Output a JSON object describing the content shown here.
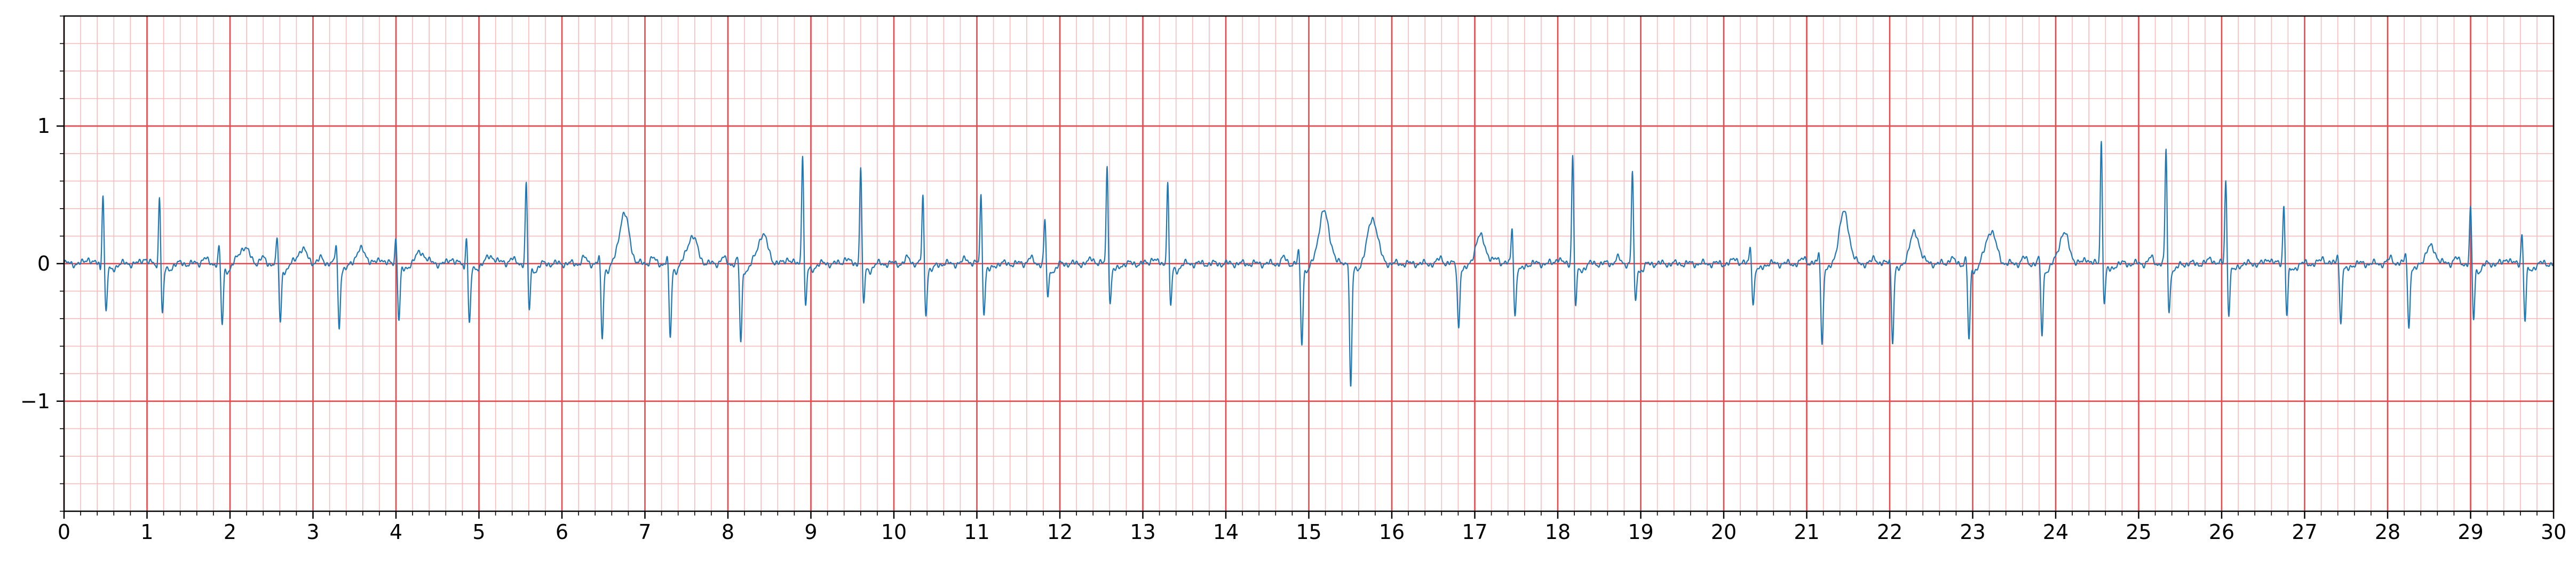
{
  "chart_data": {
    "type": "line",
    "title": "",
    "xlabel": "",
    "ylabel": "",
    "xlim": [
      0,
      30
    ],
    "ylim": [
      -1.8,
      1.8
    ],
    "grid": true,
    "legend": "none",
    "x_ticks": [
      0,
      1,
      2,
      3,
      4,
      5,
      6,
      7,
      8,
      9,
      10,
      11,
      12,
      13,
      14,
      15,
      16,
      17,
      18,
      19,
      20,
      21,
      22,
      23,
      24,
      25,
      26,
      27,
      28,
      29,
      30
    ],
    "x_tick_labels": [
      "0",
      "1",
      "2",
      "3",
      "4",
      "5",
      "6",
      "7",
      "8",
      "9",
      "10",
      "11",
      "12",
      "13",
      "14",
      "15",
      "16",
      "17",
      "18",
      "19",
      "20",
      "21",
      "22",
      "23",
      "24",
      "25",
      "26",
      "27",
      "28",
      "29",
      "30"
    ],
    "y_ticks": [
      -1,
      0,
      1
    ],
    "y_tick_labels": [
      "−1",
      "0",
      "1"
    ],
    "major_grid_x": 1,
    "major_grid_y": 1,
    "minor_grid_step": 0.2,
    "colors": {
      "trace": "#1f77b4",
      "major_grid": "#e8474b",
      "minor_grid": "#f7bcbc",
      "axes": "#000000"
    },
    "series": [
      {
        "beats": [
          {
            "t": 0.47,
            "r": 0.53,
            "q": -0.05,
            "s": -0.35,
            "tw": 0.0
          },
          {
            "t": 1.15,
            "r": 0.52,
            "q": -0.05,
            "s": -0.36,
            "tw": 0.0
          },
          {
            "t": 1.87,
            "r": 0.13,
            "q": 0.0,
            "s": -0.44,
            "tw": 0.12
          },
          {
            "t": 2.57,
            "r": 0.19,
            "q": 0.0,
            "s": -0.42,
            "tw": 0.1
          },
          {
            "t": 3.28,
            "r": 0.16,
            "q": 0.0,
            "s": -0.45,
            "tw": 0.1
          },
          {
            "t": 4.0,
            "r": 0.2,
            "q": 0.0,
            "s": -0.4,
            "tw": 0.08
          },
          {
            "t": 4.85,
            "r": 0.22,
            "q": -0.05,
            "s": -0.43,
            "tw": 0.05
          },
          {
            "t": 5.57,
            "r": 0.6,
            "q": 0.0,
            "s": -0.33,
            "tw": 0.0
          },
          {
            "t": 6.45,
            "r": 0.05,
            "q": 0.0,
            "s": -0.53,
            "tw": 0.36
          },
          {
            "t": 7.27,
            "r": 0.05,
            "q": 0.0,
            "s": -0.53,
            "tw": 0.2
          },
          {
            "t": 8.12,
            "r": 0.05,
            "q": 0.0,
            "s": -0.56,
            "tw": 0.21
          },
          {
            "t": 8.9,
            "r": 0.82,
            "q": 0.0,
            "s": -0.3,
            "tw": 0.0
          },
          {
            "t": 9.6,
            "r": 0.71,
            "q": 0.0,
            "s": -0.28,
            "tw": 0.0
          },
          {
            "t": 10.35,
            "r": 0.5,
            "q": 0.0,
            "s": -0.36,
            "tw": 0.0
          },
          {
            "t": 11.05,
            "r": 0.51,
            "q": 0.0,
            "s": -0.35,
            "tw": 0.0
          },
          {
            "t": 11.82,
            "r": 0.32,
            "q": 0.0,
            "s": -0.24,
            "tw": 0.0
          },
          {
            "t": 12.57,
            "r": 0.72,
            "q": 0.0,
            "s": -0.28,
            "tw": 0.0
          },
          {
            "t": 13.3,
            "r": 0.6,
            "q": 0.0,
            "s": -0.3,
            "tw": 0.0
          },
          {
            "t": 14.88,
            "r": 0.1,
            "q": 0.0,
            "s": -0.57,
            "tw": 0.38
          },
          {
            "t": 15.47,
            "r": 0.05,
            "q": 0.0,
            "s": -0.89,
            "tw": 0.33
          },
          {
            "t": 16.77,
            "r": 0.0,
            "q": 0.0,
            "s": -0.45,
            "tw": 0.2
          },
          {
            "t": 17.45,
            "r": 0.28,
            "q": 0.0,
            "s": -0.37,
            "tw": 0.0
          },
          {
            "t": 18.18,
            "r": 0.8,
            "q": 0.0,
            "s": -0.3,
            "tw": 0.0
          },
          {
            "t": 18.9,
            "r": 0.68,
            "q": 0.0,
            "s": -0.28,
            "tw": 0.0
          },
          {
            "t": 20.32,
            "r": 0.14,
            "q": 0.0,
            "s": -0.28,
            "tw": 0.0
          },
          {
            "t": 21.15,
            "r": 0.1,
            "q": 0.0,
            "s": -0.58,
            "tw": 0.37
          },
          {
            "t": 22.0,
            "r": 0.05,
            "q": 0.0,
            "s": -0.55,
            "tw": 0.22
          },
          {
            "t": 22.92,
            "r": 0.05,
            "q": 0.0,
            "s": -0.56,
            "tw": 0.24
          },
          {
            "t": 23.8,
            "r": 0.05,
            "q": 0.0,
            "s": -0.5,
            "tw": 0.22
          },
          {
            "t": 24.55,
            "r": 0.9,
            "q": 0.0,
            "s": -0.28,
            "tw": 0.0
          },
          {
            "t": 25.33,
            "r": 0.84,
            "q": 0.0,
            "s": -0.36,
            "tw": 0.0
          },
          {
            "t": 26.05,
            "r": 0.63,
            "q": 0.0,
            "s": -0.35,
            "tw": 0.0
          },
          {
            "t": 26.75,
            "r": 0.45,
            "q": 0.0,
            "s": -0.36,
            "tw": 0.0
          },
          {
            "t": 27.4,
            "r": 0.1,
            "q": 0.0,
            "s": -0.42,
            "tw": 0.0
          },
          {
            "t": 28.22,
            "r": 0.1,
            "q": 0.0,
            "s": -0.45,
            "tw": 0.12
          },
          {
            "t": 29.0,
            "r": 0.42,
            "q": 0.0,
            "s": -0.4,
            "tw": 0.0
          },
          {
            "t": 29.62,
            "r": 0.24,
            "q": 0.0,
            "s": -0.4,
            "tw": 0.0
          }
        ]
      }
    ]
  }
}
